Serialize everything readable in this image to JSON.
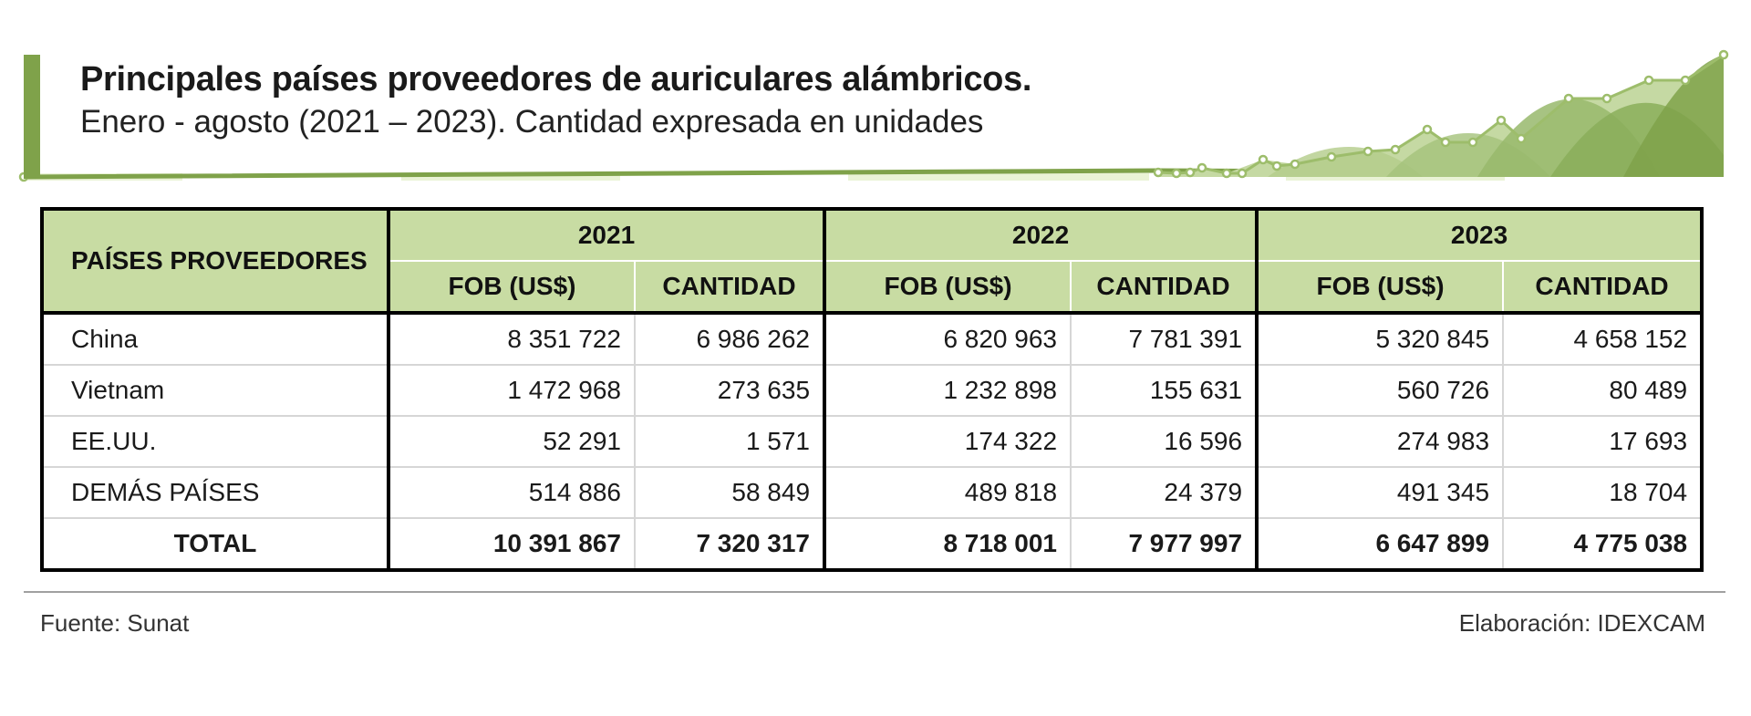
{
  "header": {
    "title": "Principales países proveedores de auriculares alámbricos.",
    "subtitle": "Enero - agosto (2021 – 2023). Cantidad expresada en unidades"
  },
  "table": {
    "country_header": "PAÍSES PROVEEDORES",
    "years": [
      "2021",
      "2022",
      "2023"
    ],
    "sub_headers": [
      "FOB (US$)",
      "CANTIDAD"
    ],
    "rows": [
      {
        "country": "China",
        "values": [
          "8 351 722",
          "6 986 262",
          "6 820 963",
          "7 781 391",
          "5 320 845",
          "4 658 152"
        ]
      },
      {
        "country": "Vietnam",
        "values": [
          "1 472 968",
          "273 635",
          "1 232 898",
          "155 631",
          "560 726",
          "80 489"
        ]
      },
      {
        "country": "EE.UU.",
        "values": [
          "52 291",
          "1 571",
          "174 322",
          "16 596",
          "274 983",
          "17 693"
        ]
      },
      {
        "country": "DEMÁS PAÍSES",
        "values": [
          "514 886",
          "58 849",
          "489 818",
          "24 379",
          "491 345",
          "18 704"
        ]
      }
    ],
    "total": {
      "country": "TOTAL",
      "values": [
        "10 391 867",
        "7 320 317",
        "8 718 001",
        "7 977 997",
        "6 647 899",
        "4 775 038"
      ]
    }
  },
  "footer": {
    "source": "Fuente: Sunat",
    "credit": "Elaboración: IDEXCAM"
  },
  "colors": {
    "accent": "#7fa24a",
    "header_fill": "#c8dca3"
  }
}
